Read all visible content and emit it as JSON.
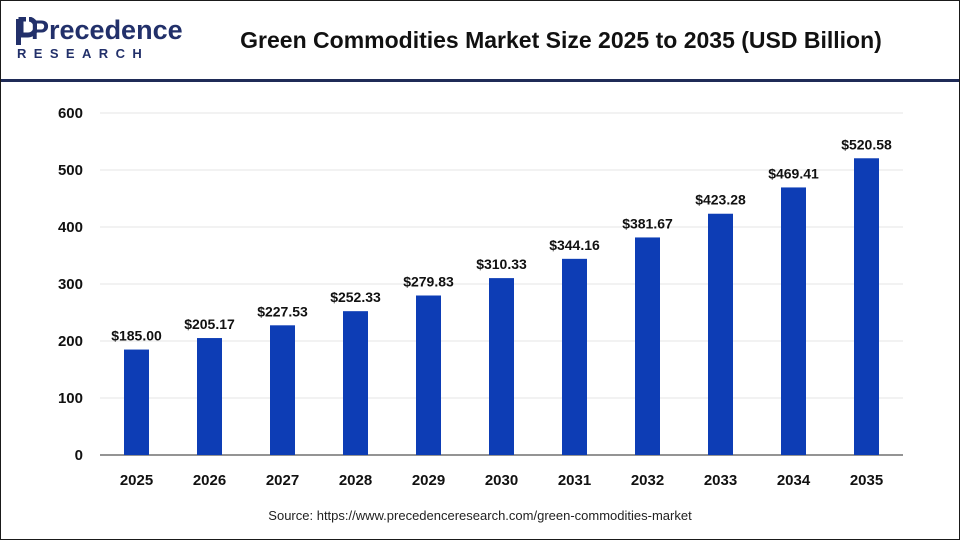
{
  "header": {
    "logo_main": "Precedence",
    "logo_sub": "RESEARCH",
    "title": "Green Commodities Market Size 2025 to 2035 (USD Billion)"
  },
  "footer": {
    "source": "Source: https://www.precedenceresearch.com/green-commodities-market"
  },
  "colors": {
    "bar": "#0d3db5",
    "brand": "#22306a",
    "grid": "#e6e6e6"
  },
  "chart_data": {
    "type": "bar",
    "title": "Green Commodities Market Size 2025 to 2035 (USD Billion)",
    "xlabel": "",
    "ylabel": "",
    "categories": [
      "2025",
      "2026",
      "2027",
      "2028",
      "2029",
      "2030",
      "2031",
      "2032",
      "2033",
      "2034",
      "2035"
    ],
    "values": [
      185.0,
      205.17,
      227.53,
      252.33,
      279.83,
      310.33,
      344.16,
      381.67,
      423.28,
      469.41,
      520.58
    ],
    "data_labels": [
      "$185.00",
      "$205.17",
      "$227.53",
      "$252.33",
      "$279.83",
      "$310.33",
      "$344.16",
      "$381.67",
      "$423.28",
      "$469.41",
      "$520.58"
    ],
    "yticks": [
      0,
      100,
      200,
      300,
      400,
      500,
      600
    ],
    "ylim": [
      0,
      600
    ],
    "grid": true,
    "legend": "none"
  }
}
